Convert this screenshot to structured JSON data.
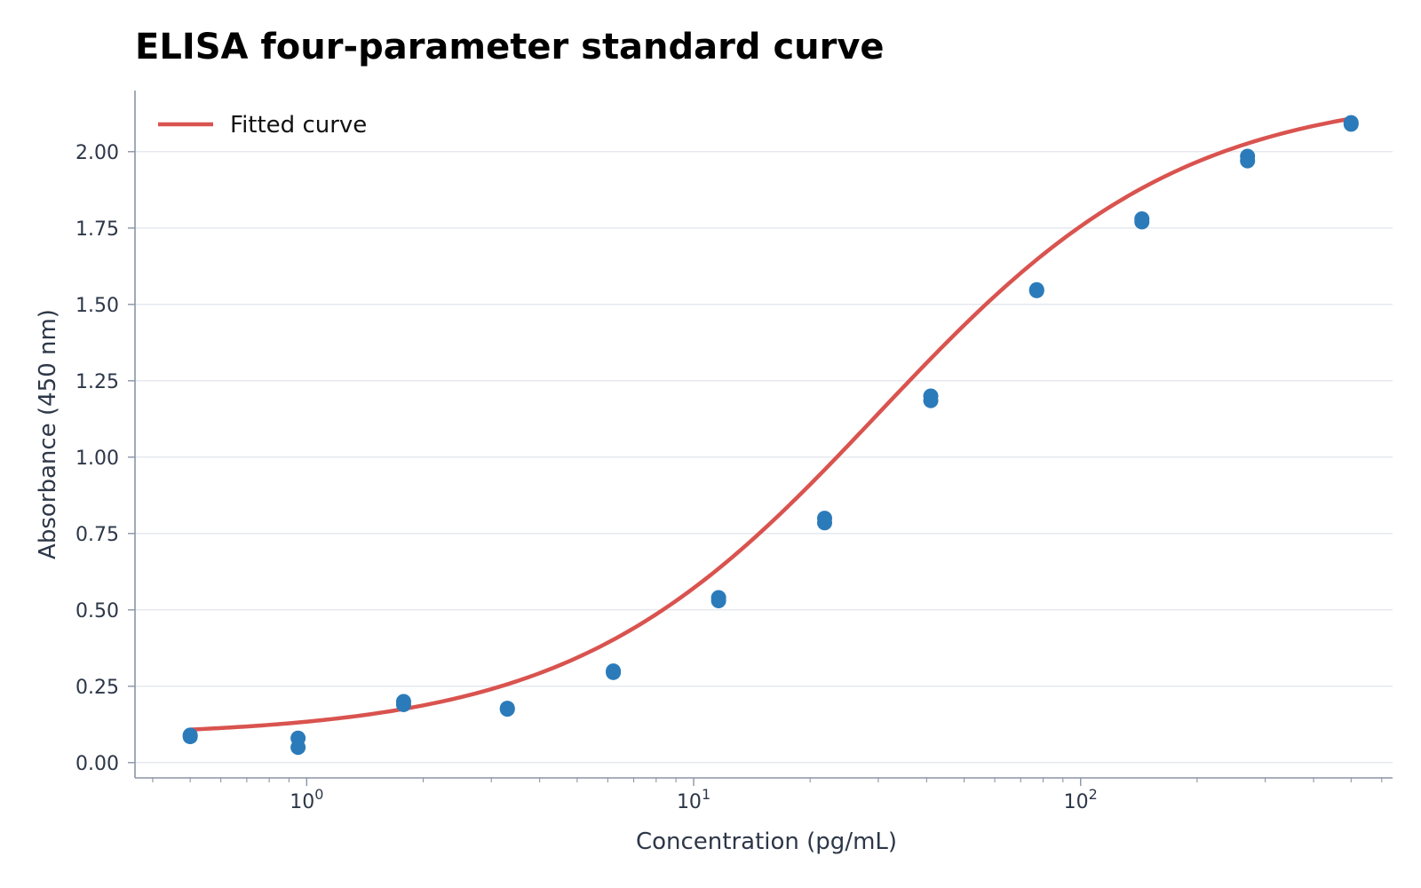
{
  "chart_data": {
    "type": "scatter",
    "title": "ELISA four-parameter standard curve",
    "xlabel": "Concentration (pg/mL)",
    "ylabel": "Absorbance (450 nm)",
    "x_scale": "log",
    "xlim": [
      0.36,
      640
    ],
    "ylim": [
      -0.05,
      2.2
    ],
    "x_major_ticks": [
      1,
      10,
      100
    ],
    "x_tick_labels": [
      {
        "base": "10",
        "exp": "0"
      },
      {
        "base": "10",
        "exp": "1"
      },
      {
        "base": "10",
        "exp": "2"
      }
    ],
    "y_ticks": [
      0,
      0.25,
      0.5,
      0.75,
      1.0,
      1.25,
      1.5,
      1.75,
      2.0
    ],
    "y_tick_labels": [
      "0.00",
      "0.25",
      "0.50",
      "0.75",
      "1.00",
      "1.25",
      "1.50",
      "1.75",
      "2.00"
    ],
    "grid": "horizontal",
    "legend_position": "top-left",
    "series": [
      {
        "name": "Fitted curve",
        "kind": "line",
        "color": "#d9534f",
        "model": "4PL",
        "params": {
          "bottom": 0.085,
          "top": 2.2,
          "ec50": 30,
          "hill": 1.1
        },
        "x_range": [
          0.5,
          500
        ]
      },
      {
        "kind": "scatter",
        "color": "#2b7bba",
        "points": [
          {
            "x": 0.5,
            "y": 0.085
          },
          {
            "x": 0.5,
            "y": 0.09
          },
          {
            "x": 0.95,
            "y": 0.08
          },
          {
            "x": 0.95,
            "y": 0.05
          },
          {
            "x": 1.78,
            "y": 0.2
          },
          {
            "x": 1.78,
            "y": 0.19
          },
          {
            "x": 3.3,
            "y": 0.175
          },
          {
            "x": 3.3,
            "y": 0.178
          },
          {
            "x": 6.2,
            "y": 0.295
          },
          {
            "x": 6.2,
            "y": 0.3
          },
          {
            "x": 11.6,
            "y": 0.54
          },
          {
            "x": 11.6,
            "y": 0.53
          },
          {
            "x": 21.8,
            "y": 0.8
          },
          {
            "x": 21.8,
            "y": 0.785
          },
          {
            "x": 41,
            "y": 1.2
          },
          {
            "x": 41,
            "y": 1.185
          },
          {
            "x": 77,
            "y": 1.545
          },
          {
            "x": 77,
            "y": 1.548
          },
          {
            "x": 144,
            "y": 1.78
          },
          {
            "x": 144,
            "y": 1.77
          },
          {
            "x": 270,
            "y": 1.985
          },
          {
            "x": 270,
            "y": 1.97
          },
          {
            "x": 500,
            "y": 2.095
          },
          {
            "x": 500,
            "y": 2.09
          }
        ]
      }
    ]
  }
}
